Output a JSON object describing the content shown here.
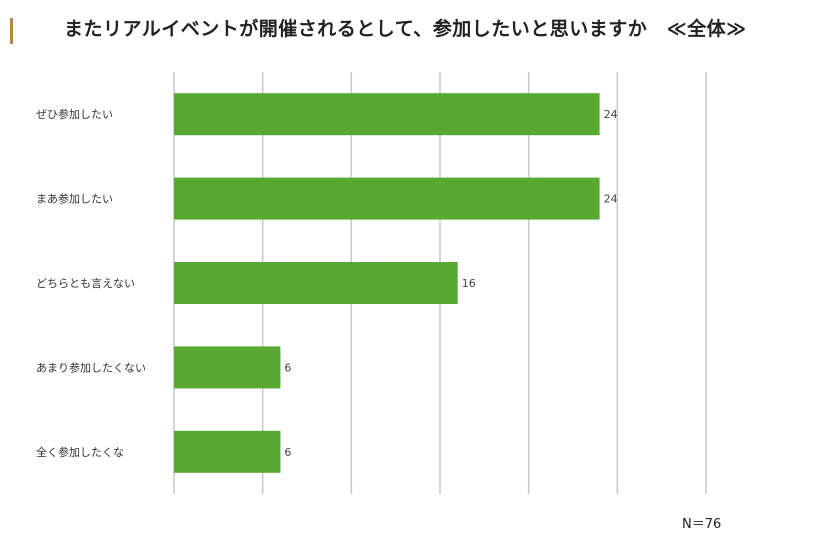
{
  "title": "またリアルイベントが開催されるとして、参加したいと思いますか　≪全体≫",
  "n_label": "N＝76",
  "colors": {
    "bar": "#57a932",
    "grid": "#c8c8c8",
    "title_accent": "#b8864b"
  },
  "chart_data": {
    "type": "bar",
    "orientation": "horizontal",
    "categories": [
      "ぜひ参加したい",
      "まあ参加したい",
      "どちらとも言えない",
      "あまり参加したくない",
      "全く参加したくな"
    ],
    "values": [
      24,
      24,
      16,
      6,
      6
    ],
    "title": "またリアルイベントが開催されるとして、参加したいと思いますか　≪全体≫",
    "xlim": [
      0,
      30
    ],
    "grid": true,
    "data_labels": true
  }
}
